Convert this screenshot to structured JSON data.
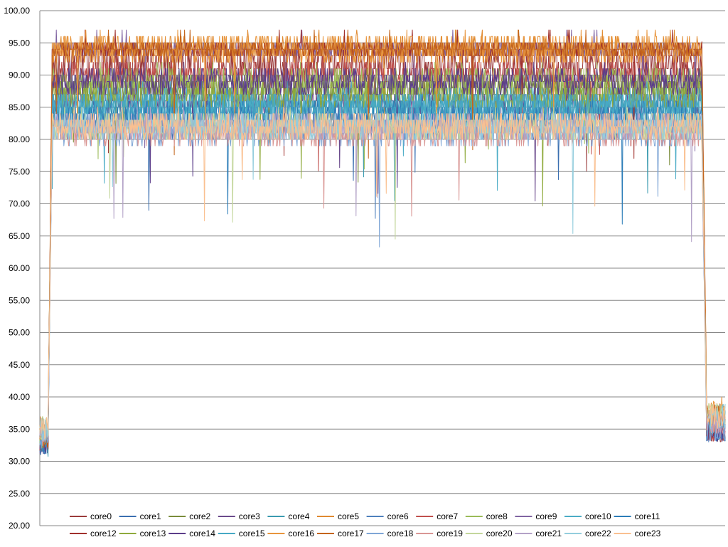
{
  "chart_data": {
    "type": "line",
    "title": "",
    "xlabel": "",
    "ylabel": "",
    "ylim": [
      20,
      100
    ],
    "y_ticks": [
      "20.00",
      "25.00",
      "30.00",
      "35.00",
      "40.00",
      "45.00",
      "50.00",
      "55.00",
      "60.00",
      "65.00",
      "70.00",
      "75.00",
      "80.00",
      "85.00",
      "90.00",
      "95.00",
      "100.00"
    ],
    "y_tick_values": [
      20,
      25,
      30,
      35,
      40,
      45,
      50,
      55,
      60,
      65,
      70,
      75,
      80,
      85,
      90,
      95,
      100
    ],
    "grid": "horizontal",
    "legend_position": "bottom",
    "x_count": 1000,
    "segment_fractions": {
      "ramp_start": 0.012,
      "plateau_start": 0.018,
      "plateau_end": 0.965,
      "drop_end": 0.972
    },
    "series": [
      {
        "name": "core0",
        "color": "#9b3b3b",
        "idle": 33,
        "plateau": 92,
        "jitter": 3,
        "end": 35
      },
      {
        "name": "core1",
        "color": "#3b6fb0",
        "idle": 33,
        "plateau": 82,
        "jitter": 2,
        "end": 35
      },
      {
        "name": "core2",
        "color": "#7a8c3a",
        "idle": 34,
        "plateau": 88,
        "jitter": 2,
        "end": 36
      },
      {
        "name": "core3",
        "color": "#6b4a8c",
        "idle": 33,
        "plateau": 86,
        "jitter": 2,
        "end": 35
      },
      {
        "name": "core4",
        "color": "#3b9bb0",
        "idle": 32,
        "plateau": 85,
        "jitter": 2,
        "end": 36
      },
      {
        "name": "core5",
        "color": "#e08a30",
        "idle": 34,
        "plateau": 94,
        "jitter": 2,
        "end": 37
      },
      {
        "name": "core6",
        "color": "#4f81bd",
        "idle": 33,
        "plateau": 83,
        "jitter": 2,
        "end": 35
      },
      {
        "name": "core7",
        "color": "#c0504d",
        "idle": 33,
        "plateau": 90,
        "jitter": 2,
        "end": 35
      },
      {
        "name": "core8",
        "color": "#9bbb59",
        "idle": 35,
        "plateau": 89,
        "jitter": 2,
        "end": 36
      },
      {
        "name": "core9",
        "color": "#8064a2",
        "idle": 33,
        "plateau": 94,
        "jitter": 1,
        "end": 36
      },
      {
        "name": "core10",
        "color": "#4bacc6",
        "idle": 34,
        "plateau": 86,
        "jitter": 2,
        "end": 37
      },
      {
        "name": "core11",
        "color": "#2c7db8",
        "idle": 33,
        "plateau": 84,
        "jitter": 2,
        "end": 35
      },
      {
        "name": "core12",
        "color": "#a0302c",
        "idle": 33,
        "plateau": 94,
        "jitter": 1,
        "end": 35
      },
      {
        "name": "core13",
        "color": "#8faa3c",
        "idle": 34,
        "plateau": 87,
        "jitter": 2,
        "end": 36
      },
      {
        "name": "core14",
        "color": "#5b3d8a",
        "idle": 33,
        "plateau": 89,
        "jitter": 2,
        "end": 35
      },
      {
        "name": "core15",
        "color": "#46a9c4",
        "idle": 34,
        "plateau": 85,
        "jitter": 2,
        "end": 36
      },
      {
        "name": "core16",
        "color": "#e8953c",
        "idle": 35,
        "plateau": 94,
        "jitter": 2,
        "end": 38
      },
      {
        "name": "core17",
        "color": "#c4651c",
        "idle": 34,
        "plateau": 94,
        "jitter": 1,
        "end": 37
      },
      {
        "name": "core18",
        "color": "#7fa6d6",
        "idle": 33,
        "plateau": 81,
        "jitter": 2,
        "end": 35
      },
      {
        "name": "core19",
        "color": "#d99694",
        "idle": 34,
        "plateau": 81,
        "jitter": 2,
        "end": 36
      },
      {
        "name": "core20",
        "color": "#c3d69b",
        "idle": 35,
        "plateau": 82,
        "jitter": 2,
        "end": 37
      },
      {
        "name": "core21",
        "color": "#b3a2c7",
        "idle": 34,
        "plateau": 82,
        "jitter": 2,
        "end": 36
      },
      {
        "name": "core22",
        "color": "#93cddd",
        "idle": 35,
        "plateau": 82,
        "jitter": 2,
        "end": 37
      },
      {
        "name": "core23",
        "color": "#fac090",
        "idle": 35,
        "plateau": 82,
        "jitter": 2,
        "end": 37
      }
    ]
  }
}
